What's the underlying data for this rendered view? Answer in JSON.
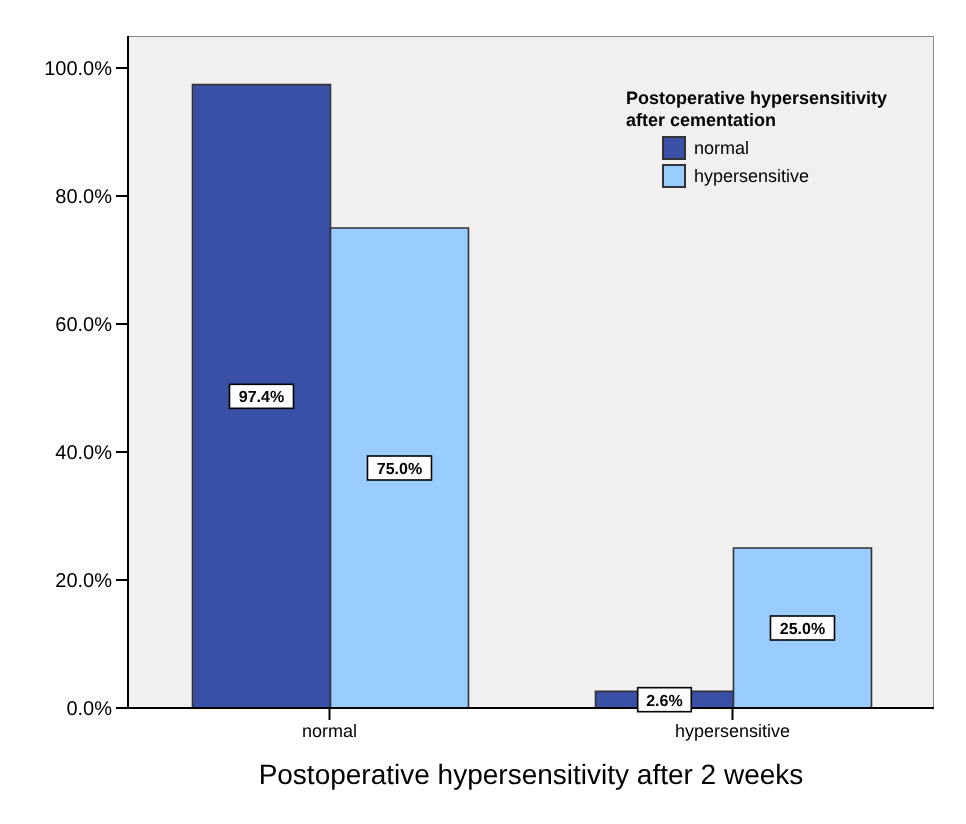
{
  "chart_data": {
    "type": "bar",
    "xlabel": "Postoperative hypersensitivity after 2 weeks",
    "legend_title": "Postoperative hypersensitivity after cementation",
    "categories": [
      "normal",
      "hypersensitive"
    ],
    "series": [
      {
        "name": "normal",
        "color": "#3a4fa6",
        "values": [
          97.4,
          2.6
        ],
        "value_labels": [
          "97.4%",
          "2.6%"
        ]
      },
      {
        "name": "hypersensitive",
        "color": "#99ccff",
        "values": [
          75.0,
          25.0
        ],
        "value_labels": [
          "75.0%",
          "25.0%"
        ]
      }
    ],
    "ylim": [
      0,
      105
    ],
    "yticks": [
      {
        "value": 0,
        "label": "0.0%"
      },
      {
        "value": 20,
        "label": "20.0%"
      },
      {
        "value": 40,
        "label": "40.0%"
      },
      {
        "value": 60,
        "label": "60.0%"
      },
      {
        "value": 80,
        "label": "80.0%"
      },
      {
        "value": 100,
        "label": "100.0%"
      }
    ],
    "grid": false,
    "legend": "top right"
  }
}
